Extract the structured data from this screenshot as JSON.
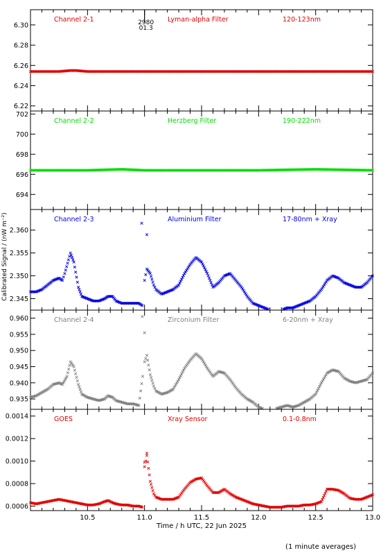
{
  "figure": {
    "xlabel": "Time / h UTC, 22 Jun 2025",
    "ylabel": "Calibrated Signal / (nW m⁻²)",
    "footnote": "(1 minute averages)",
    "x_ticks": [
      "10.5",
      "11.0",
      "11.5",
      "12.0",
      "12.5",
      "13.0"
    ]
  },
  "chart_data": [
    {
      "type": "scatter",
      "marker": "x",
      "color": "#e00000",
      "labels": [
        "Channel 2-1",
        "Lyman-alpha Filter",
        "120-123nm"
      ],
      "ylim": [
        6.215,
        6.315
      ],
      "yticks": [
        "6.22",
        "6.24",
        "6.26",
        "6.28",
        "6.30"
      ],
      "annotation": [
        "2980",
        "01.3"
      ],
      "series": [
        {
          "x": [
            10.0,
            10.25,
            10.35,
            10.4,
            10.5,
            11.0,
            11.5,
            12.0,
            12.5,
            13.0
          ],
          "y": [
            6.254,
            6.254,
            6.255,
            6.255,
            6.254,
            6.254,
            6.254,
            6.254,
            6.254,
            6.254
          ]
        }
      ]
    },
    {
      "type": "scatter",
      "marker": "x",
      "color": "#00dd00",
      "labels": [
        "Channel 2-2",
        "Herzberg Filter",
        "190-222nm"
      ],
      "ylim": [
        692.5,
        702.3
      ],
      "yticks": [
        "694",
        "696",
        "698",
        "700",
        "702"
      ],
      "series": [
        {
          "x": [
            10.0,
            10.5,
            10.8,
            11.0,
            11.5,
            12.0,
            12.5,
            13.0
          ],
          "y": [
            696.4,
            696.4,
            696.5,
            696.4,
            696.4,
            696.4,
            696.5,
            696.4
          ]
        }
      ]
    },
    {
      "type": "scatter",
      "marker": "x",
      "color": "#0000dd",
      "labels": [
        "Channel 2-3",
        "Aluminium Filter",
        "17-80nm + Xray"
      ],
      "ylim": [
        2.3425,
        2.3645
      ],
      "yticks": [
        "2.345",
        "2.350",
        "2.355",
        "2.360"
      ],
      "series": [
        {
          "x": [
            10.0,
            10.05,
            10.1,
            10.15,
            10.2,
            10.25,
            10.28,
            10.3,
            10.35,
            10.38,
            10.42,
            10.45,
            10.5,
            10.55,
            10.6,
            10.65,
            10.68,
            10.72,
            10.75,
            10.8,
            10.85,
            10.9,
            10.95,
            10.98,
            11.0,
            11.02,
            11.05,
            11.08,
            11.1,
            11.15,
            11.2,
            11.25,
            11.3,
            11.35,
            11.4,
            11.45,
            11.5,
            11.55,
            11.6,
            11.65,
            11.7,
            11.75,
            11.8,
            11.85,
            11.9,
            11.95,
            12.0,
            12.05,
            12.1,
            12.15,
            12.2,
            12.25,
            12.3,
            12.35,
            12.4,
            12.45,
            12.5,
            12.55,
            12.6,
            12.65,
            12.7,
            12.75,
            12.8,
            12.85,
            12.9,
            12.95,
            13.0
          ],
          "y": [
            2.3465,
            2.3465,
            2.347,
            2.348,
            2.349,
            2.3495,
            2.349,
            2.3505,
            2.355,
            2.353,
            2.3475,
            2.3455,
            2.345,
            2.3445,
            2.3445,
            2.345,
            2.3455,
            2.3455,
            2.3445,
            2.344,
            2.344,
            2.344,
            2.344,
            2.3435,
            2.349,
            2.3515,
            2.3505,
            2.348,
            2.347,
            2.346,
            2.3465,
            2.347,
            2.348,
            2.3505,
            2.3525,
            2.354,
            2.353,
            2.3505,
            2.3475,
            2.3485,
            2.35,
            2.3505,
            2.349,
            2.3475,
            2.3455,
            2.344,
            2.3435,
            2.343,
            2.3425,
            2.3425,
            2.3425,
            2.343,
            2.343,
            2.3435,
            2.344,
            2.3445,
            2.3455,
            2.347,
            2.349,
            2.35,
            2.3495,
            2.3485,
            2.348,
            2.3475,
            2.3475,
            2.3485,
            2.35
          ]
        },
        {
          "x": [
            10.975,
            11.02
          ],
          "y": [
            2.3615,
            2.359
          ]
        }
      ]
    },
    {
      "type": "scatter",
      "marker": "x",
      "color": "#808080",
      "labels": [
        "Channel 2-4",
        "Zirconium Filter",
        "6-20nm + Xray"
      ],
      "ylim": [
        0.9318,
        0.9625
      ],
      "yticks": [
        "0.935",
        "0.940",
        "0.945",
        "0.950",
        "0.955",
        "0.960"
      ],
      "series": [
        {
          "x": [
            10.0,
            10.05,
            10.1,
            10.15,
            10.2,
            10.25,
            10.28,
            10.32,
            10.35,
            10.38,
            10.42,
            10.45,
            10.5,
            10.55,
            10.6,
            10.65,
            10.68,
            10.72,
            10.75,
            10.8,
            10.85,
            10.9,
            10.95,
            11.0,
            11.02,
            11.05,
            11.08,
            11.1,
            11.15,
            11.2,
            11.25,
            11.3,
            11.35,
            11.4,
            11.45,
            11.5,
            11.55,
            11.6,
            11.65,
            11.7,
            11.75,
            11.8,
            11.85,
            11.9,
            11.95,
            12.0,
            12.05,
            12.1,
            12.15,
            12.2,
            12.25,
            12.3,
            12.35,
            12.4,
            12.45,
            12.5,
            12.55,
            12.6,
            12.65,
            12.7,
            12.75,
            12.8,
            12.85,
            12.9,
            12.95,
            13.0
          ],
          "y": [
            0.9355,
            0.936,
            0.937,
            0.938,
            0.9395,
            0.94,
            0.9395,
            0.942,
            0.9465,
            0.945,
            0.9395,
            0.9365,
            0.9355,
            0.935,
            0.9345,
            0.935,
            0.936,
            0.9355,
            0.9345,
            0.934,
            0.9335,
            0.9335,
            0.933,
            0.9465,
            0.9485,
            0.9425,
            0.939,
            0.9375,
            0.9365,
            0.937,
            0.938,
            0.941,
            0.9445,
            0.947,
            0.949,
            0.9475,
            0.9445,
            0.942,
            0.9435,
            0.943,
            0.941,
            0.9385,
            0.9365,
            0.935,
            0.934,
            0.9325,
            0.9318,
            0.9318,
            0.932,
            0.9325,
            0.933,
            0.9325,
            0.933,
            0.934,
            0.935,
            0.9365,
            0.94,
            0.943,
            0.944,
            0.9435,
            0.9415,
            0.9405,
            0.94,
            0.9405,
            0.941,
            0.943
          ]
        },
        {
          "x": [
            11.0,
            10.98
          ],
          "y": [
            0.9555,
            0.9605
          ]
        }
      ]
    },
    {
      "type": "scatter",
      "marker": "x",
      "color": "#e00000",
      "labels": [
        "GOES",
        "Xray Sensor",
        "0.1-0.8nm"
      ],
      "ylim": [
        0.00056,
        0.00146
      ],
      "yticks": [
        "0.0006",
        "0.0008",
        "0.0010",
        "0.0012",
        "0.0014"
      ],
      "series": [
        {
          "x": [
            10.0,
            10.05,
            10.1,
            10.15,
            10.2,
            10.25,
            10.3,
            10.35,
            10.4,
            10.45,
            10.5,
            10.55,
            10.6,
            10.65,
            10.68,
            10.72,
            10.75,
            10.8,
            10.85,
            10.9,
            10.95,
            10.98,
            11.0,
            11.02,
            11.05,
            11.08,
            11.1,
            11.15,
            11.2,
            11.25,
            11.3,
            11.35,
            11.4,
            11.45,
            11.5,
            11.55,
            11.6,
            11.65,
            11.7,
            11.75,
            11.8,
            11.85,
            11.9,
            11.95,
            12.0,
            12.05,
            12.1,
            12.15,
            12.2,
            12.25,
            12.3,
            12.35,
            12.4,
            12.45,
            12.5,
            12.55,
            12.6,
            12.65,
            12.7,
            12.75,
            12.8,
            12.85,
            12.9,
            12.95,
            13.0
          ],
          "y": [
            0.00063,
            0.00062,
            0.00063,
            0.00064,
            0.00065,
            0.00066,
            0.00065,
            0.00064,
            0.00063,
            0.00062,
            0.00061,
            0.00061,
            0.00062,
            0.00064,
            0.00065,
            0.00063,
            0.00062,
            0.00061,
            0.00061,
            0.0006,
            0.0006,
            0.00059,
            0.00095,
            0.00105,
            0.00082,
            0.00071,
            0.00068,
            0.00066,
            0.00066,
            0.00066,
            0.00068,
            0.00075,
            0.00081,
            0.00084,
            0.00085,
            0.00078,
            0.00072,
            0.00072,
            0.00075,
            0.00071,
            0.00068,
            0.00066,
            0.00064,
            0.00062,
            0.00061,
            0.0006,
            0.00059,
            0.00059,
            0.00059,
            0.0006,
            0.0006,
            0.0006,
            0.00061,
            0.00061,
            0.00062,
            0.00064,
            0.00075,
            0.00075,
            0.00074,
            0.00071,
            0.00067,
            0.00066,
            0.00066,
            0.00068,
            0.0007
          ]
        },
        {
          "x": [
            11.0,
            11.02
          ],
          "y": [
            0.00099,
            0.00107
          ]
        }
      ]
    }
  ]
}
